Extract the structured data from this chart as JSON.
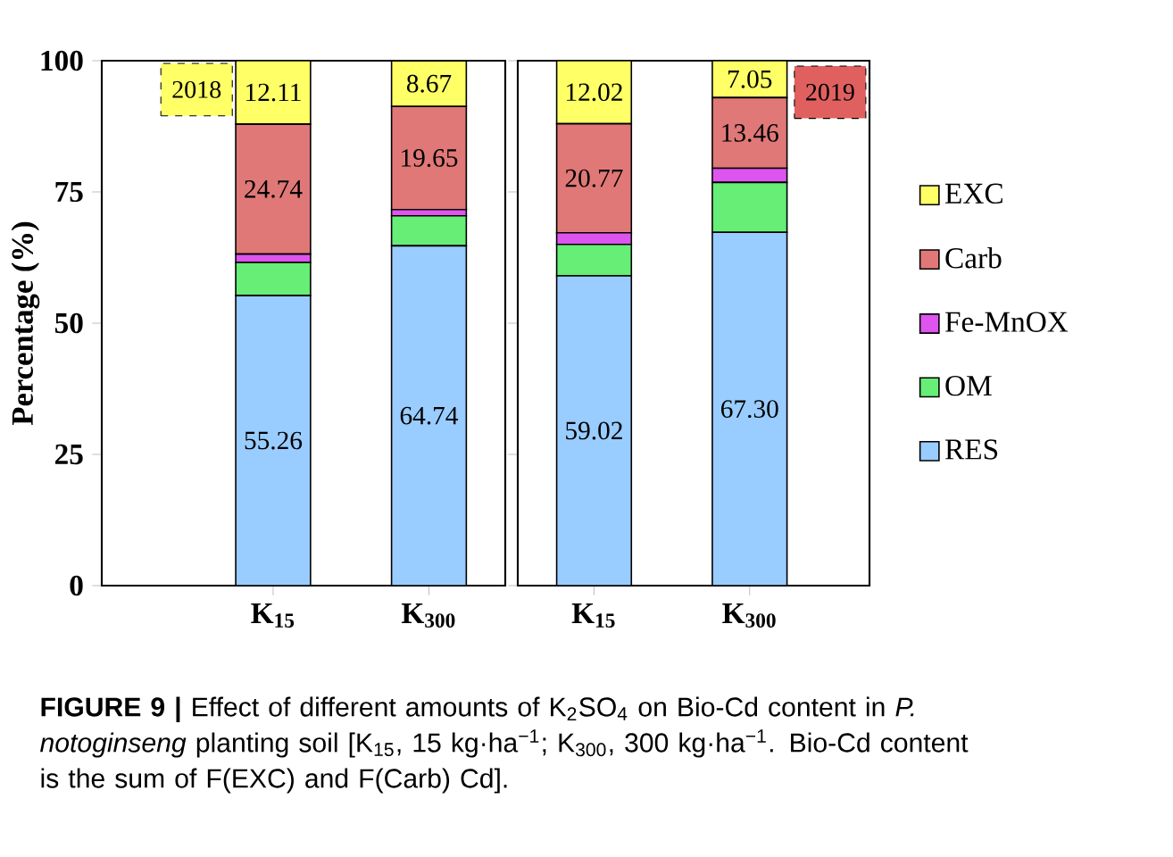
{
  "chart_data": [
    {
      "type": "bar",
      "stacked": true,
      "categories": [
        "K$_{15}$",
        "K$_{300}$"
      ],
      "ylabel": "Percentage (%)",
      "ylim": [
        0,
        100
      ],
      "yticks": [
        0,
        25,
        50,
        75,
        100
      ],
      "series": [
        {
          "color": "#99ccff",
          "values": [
            55.26,
            64.74
          ],
          "value_labels": [
            "55.26",
            "64.74"
          ]
        },
        {
          "color": "#66ee77",
          "values": [
            6.3,
            5.7
          ]
        },
        {
          "color": "#dd55ee",
          "values": [
            1.6,
            1.2
          ]
        },
        {
          "color": "#e07878",
          "values": [
            24.74,
            19.65
          ],
          "value_labels": [
            "24.74",
            "19.65"
          ]
        },
        {
          "color": "#ffff66",
          "values": [
            12.11,
            8.67
          ],
          "value_labels": [
            "12.11",
            "8.67"
          ]
        }
      ],
      "annotations": [
        "2018",
        "**FIGURE 9 |** Effect of different amounts of K$_{2}$SO$_{4}$ on Bio-Cd content in *P. notoginseng* planting soil [K$_{15}$, 15 kg·ha$^{−1}$; K$_{300}$, 300 kg·ha$^{−1}$. Bio-Cd content is the sum of F(EXC) and F(Carb) Cd]."
      ]
    },
    {
      "type": "bar",
      "stacked": true,
      "categories": [
        "K$_{15}$",
        "K$_{300}$"
      ],
      "ylim": [
        0,
        100
      ],
      "yticks": [
        0,
        25,
        50,
        75,
        100
      ],
      "tick_labels": "x",
      "legend": "right",
      "series": [
        {
          "name": "RES",
          "color": "#99ccff",
          "values": [
            59.02,
            67.3
          ],
          "value_labels": [
            "59.02",
            "67.30"
          ]
        },
        {
          "name": "OM",
          "color": "#66ee77",
          "values": [
            6.0,
            9.5
          ]
        },
        {
          "name": "Fe-MnOX",
          "color": "#dd55ee",
          "values": [
            2.2,
            2.7
          ]
        },
        {
          "name": "Carb",
          "color": "#e07878",
          "values": [
            20.77,
            13.46
          ],
          "value_labels": [
            "20.77",
            "13.46"
          ]
        },
        {
          "name": "EXC",
          "color": "#ffff66",
          "values": [
            12.02,
            7.05
          ],
          "value_labels": [
            "12.02",
            "7.05"
          ]
        }
      ],
      "annotations": [
        "2019"
      ]
    }
  ]
}
